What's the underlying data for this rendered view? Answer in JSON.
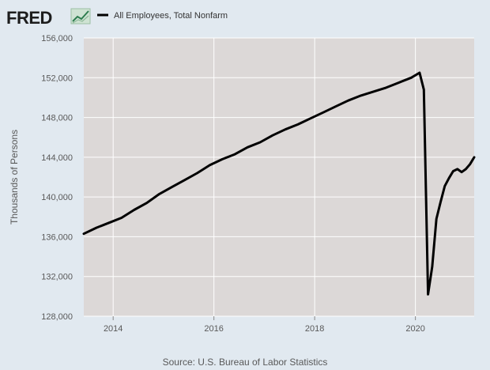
{
  "header": {
    "logo": "FRED",
    "logo_icon": "line-chart-icon"
  },
  "chart_data": {
    "type": "line",
    "title": "",
    "xlabel": "",
    "ylabel": "Thousands of Persons",
    "source": "Source: U.S. Bureau of Labor Statistics",
    "ylim": [
      128000,
      156000
    ],
    "xlim": [
      "2013-06",
      "2021-03"
    ],
    "y_ticks": [
      128000,
      132000,
      136000,
      140000,
      144000,
      148000,
      152000,
      156000
    ],
    "y_tick_labels": [
      "128,000",
      "132,000",
      "136,000",
      "140,000",
      "144,000",
      "148,000",
      "152,000",
      "156,000"
    ],
    "x_ticks": [
      "2014-01",
      "2016-01",
      "2018-01",
      "2020-01"
    ],
    "x_tick_labels": [
      "2014",
      "2016",
      "2018",
      "2020"
    ],
    "grid": true,
    "legend": "top-left",
    "colors": {
      "line": "#000000",
      "plot_bg": "#dcd8d7",
      "page_bg": "#e1e9f0",
      "grid": "#ffffff"
    },
    "series": [
      {
        "name": "All Employees, Total Nonfarm",
        "x": [
          "2013-06",
          "2013-09",
          "2013-12",
          "2014-03",
          "2014-06",
          "2014-09",
          "2014-12",
          "2015-03",
          "2015-06",
          "2015-09",
          "2015-12",
          "2016-03",
          "2016-06",
          "2016-09",
          "2016-12",
          "2017-03",
          "2017-06",
          "2017-09",
          "2017-12",
          "2018-03",
          "2018-06",
          "2018-09",
          "2018-12",
          "2019-03",
          "2019-06",
          "2019-09",
          "2019-12",
          "2020-02",
          "2020-03",
          "2020-04",
          "2020-05",
          "2020-06",
          "2020-07",
          "2020-08",
          "2020-09",
          "2020-10",
          "2020-11",
          "2020-12",
          "2021-01",
          "2021-02",
          "2021-03"
        ],
        "values": [
          136300,
          136900,
          137400,
          137900,
          138700,
          139400,
          140300,
          141000,
          141700,
          142400,
          143200,
          143800,
          144300,
          145000,
          145500,
          146200,
          146800,
          147300,
          147900,
          148500,
          149100,
          149700,
          150200,
          150600,
          151000,
          151500,
          152000,
          152500,
          150800,
          130200,
          133000,
          137800,
          139500,
          141100,
          141900,
          142600,
          142800,
          142500,
          142800,
          143300,
          144000
        ]
      }
    ]
  }
}
